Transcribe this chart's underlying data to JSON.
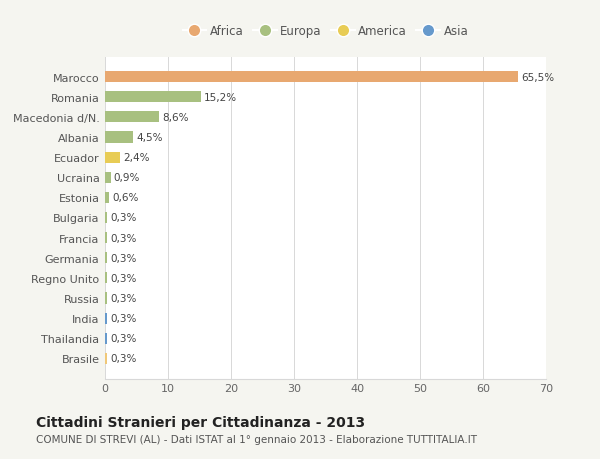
{
  "categories": [
    "Brasile",
    "Thailandia",
    "India",
    "Russia",
    "Regno Unito",
    "Germania",
    "Francia",
    "Bulgaria",
    "Estonia",
    "Ucraina",
    "Ecuador",
    "Albania",
    "Macedonia d/N.",
    "Romania",
    "Marocco"
  ],
  "values": [
    0.3,
    0.3,
    0.3,
    0.3,
    0.3,
    0.3,
    0.3,
    0.3,
    0.6,
    0.9,
    2.4,
    4.5,
    8.6,
    15.2,
    65.5
  ],
  "colors": [
    "#f0c878",
    "#6699cc",
    "#6699cc",
    "#a8c080",
    "#a8c080",
    "#a8c080",
    "#a8c080",
    "#a8c080",
    "#a8c080",
    "#a8c080",
    "#e8cc55",
    "#a8c080",
    "#a8c080",
    "#a8c080",
    "#e8a870"
  ],
  "labels": [
    "0,3%",
    "0,3%",
    "0,3%",
    "0,3%",
    "0,3%",
    "0,3%",
    "0,3%",
    "0,3%",
    "0,6%",
    "0,9%",
    "2,4%",
    "4,5%",
    "8,6%",
    "15,2%",
    "65,5%"
  ],
  "legend_labels": [
    "Africa",
    "Europa",
    "America",
    "Asia"
  ],
  "legend_colors": [
    "#e8a870",
    "#a8c080",
    "#e8cc55",
    "#6699cc"
  ],
  "title": "Cittadini Stranieri per Cittadinanza - 2013",
  "subtitle": "COMUNE DI STREVI (AL) - Dati ISTAT al 1° gennaio 2013 - Elaborazione TUTTITALIA.IT",
  "xlim": [
    0,
    70
  ],
  "xticks": [
    0,
    10,
    20,
    30,
    40,
    50,
    60,
    70
  ],
  "bg_color": "#f5f5f0",
  "plot_bg_color": "#ffffff",
  "grid_color": "#d8d8d8",
  "title_fontsize": 10,
  "subtitle_fontsize": 7.5,
  "tick_fontsize": 8,
  "label_fontsize": 7.5,
  "legend_fontsize": 8.5
}
